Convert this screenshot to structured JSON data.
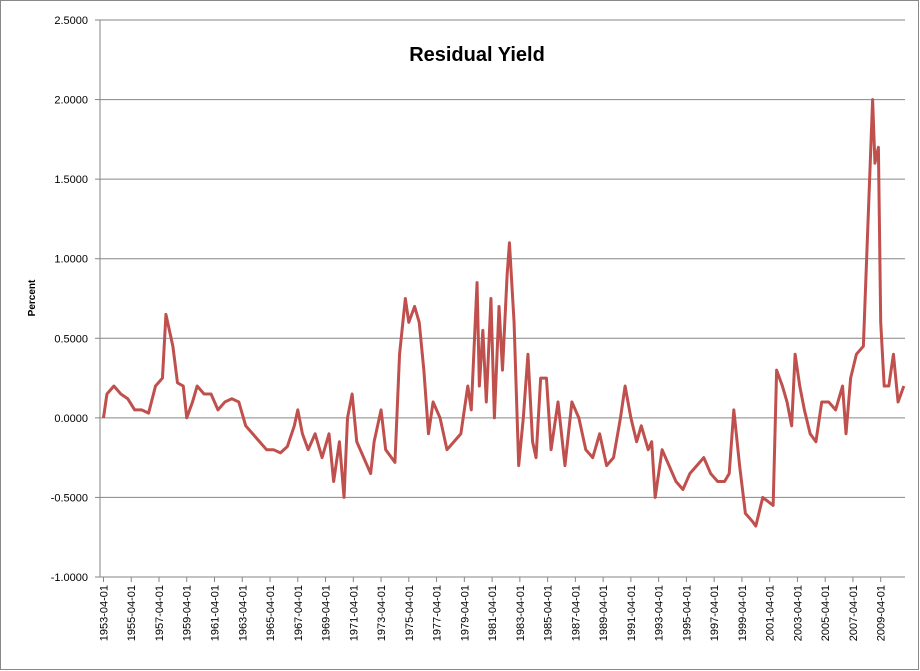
{
  "chart_data": {
    "type": "line",
    "title": "Residual Yield",
    "y_label": "Percent",
    "color": "#c0504d",
    "grid": true,
    "x": [
      "1953-04-01",
      "1953-07-01",
      "1954-01-01",
      "1954-07-01",
      "1955-01-01",
      "1955-07-01",
      "1956-01-01",
      "1956-07-01",
      "1957-01-01",
      "1957-07-01",
      "1957-10-01",
      "1958-04-01",
      "1958-08-01",
      "1959-01-01",
      "1959-04-01",
      "1959-09-01",
      "1960-01-01",
      "1960-07-01",
      "1961-01-01",
      "1961-07-01",
      "1962-01-01",
      "1962-07-01",
      "1963-01-01",
      "1963-07-01",
      "1964-01-01",
      "1964-07-01",
      "1965-01-01",
      "1965-07-01",
      "1966-01-01",
      "1966-07-01",
      "1967-01-01",
      "1967-04-01",
      "1967-08-01",
      "1968-01-01",
      "1968-07-01",
      "1969-01-01",
      "1969-07-01",
      "1969-11-01",
      "1970-04-01",
      "1970-08-01",
      "1970-11-01",
      "1971-03-01",
      "1971-07-01",
      "1972-01-01",
      "1972-07-01",
      "1972-10-01",
      "1973-04-01",
      "1973-08-01",
      "1974-01-01",
      "1974-04-01",
      "1974-08-01",
      "1975-01-01",
      "1975-04-01",
      "1975-09-01",
      "1976-01-01",
      "1976-05-01",
      "1976-09-01",
      "1977-01-01",
      "1977-07-01",
      "1978-01-01",
      "1978-07-01",
      "1979-01-01",
      "1979-07-01",
      "1979-10-01",
      "1980-03-01",
      "1980-05-01",
      "1980-08-01",
      "1980-11-01",
      "1981-03-01",
      "1981-06-01",
      "1981-10-01",
      "1982-01-01",
      "1982-05-01",
      "1982-07-01",
      "1982-11-01",
      "1983-03-01",
      "1983-07-01",
      "1983-11-01",
      "1984-03-01",
      "1984-06-01",
      "1984-10-01",
      "1985-03-01",
      "1985-07-01",
      "1986-01-01",
      "1986-07-01",
      "1987-01-01",
      "1987-07-01",
      "1988-01-01",
      "1988-07-01",
      "1989-01-01",
      "1989-07-01",
      "1990-01-01",
      "1990-07-01",
      "1990-11-01",
      "1991-04-01",
      "1991-09-01",
      "1992-01-01",
      "1992-07-01",
      "1992-10-01",
      "1993-01-01",
      "1993-07-01",
      "1994-01-01",
      "1994-07-01",
      "1995-01-01",
      "1995-07-01",
      "1996-01-01",
      "1996-07-01",
      "1997-01-01",
      "1997-07-01",
      "1998-01-01",
      "1998-05-01",
      "1998-09-01",
      "1999-02-01",
      "1999-07-01",
      "2000-01-01",
      "2000-04-01",
      "2000-10-01",
      "2001-07-01",
      "2001-10-01",
      "2002-03-01",
      "2002-07-01",
      "2002-11-01",
      "2003-02-01",
      "2003-06-01",
      "2003-10-01",
      "2004-03-01",
      "2004-08-01",
      "2005-01-01",
      "2005-07-01",
      "2006-01-01",
      "2006-07-01",
      "2006-10-01",
      "2007-02-01",
      "2007-07-01",
      "2008-01-01",
      "2008-09-01",
      "2008-11-01",
      "2009-02-01",
      "2009-04-01",
      "2009-07-01",
      "2009-11-01",
      "2010-03-01",
      "2010-07-01",
      "2010-12-01"
    ],
    "values": [
      0.0,
      0.15,
      0.2,
      0.15,
      0.12,
      0.05,
      0.05,
      0.03,
      0.2,
      0.25,
      0.65,
      0.45,
      0.22,
      0.2,
      0.0,
      0.1,
      0.2,
      0.15,
      0.15,
      0.05,
      0.1,
      0.12,
      0.1,
      -0.05,
      -0.1,
      -0.15,
      -0.2,
      -0.2,
      -0.22,
      -0.18,
      -0.05,
      0.05,
      -0.1,
      -0.2,
      -0.1,
      -0.25,
      -0.1,
      -0.4,
      -0.15,
      -0.5,
      0.0,
      0.15,
      -0.15,
      -0.25,
      -0.35,
      -0.15,
      0.05,
      -0.2,
      -0.25,
      -0.28,
      0.4,
      0.75,
      0.6,
      0.7,
      0.6,
      0.3,
      -0.1,
      0.1,
      0.0,
      -0.2,
      -0.15,
      -0.1,
      0.2,
      0.05,
      0.85,
      0.2,
      0.55,
      0.1,
      0.75,
      0.0,
      0.7,
      0.3,
      0.9,
      1.1,
      0.6,
      -0.3,
      0.0,
      0.4,
      -0.15,
      -0.25,
      0.25,
      0.25,
      -0.2,
      0.1,
      -0.3,
      0.1,
      0.0,
      -0.2,
      -0.25,
      -0.1,
      -0.3,
      -0.25,
      0.0,
      0.2,
      0.0,
      -0.15,
      -0.05,
      -0.2,
      -0.15,
      -0.5,
      -0.2,
      -0.3,
      -0.4,
      -0.45,
      -0.35,
      -0.3,
      -0.25,
      -0.35,
      -0.4,
      -0.4,
      -0.35,
      0.05,
      -0.3,
      -0.6,
      -0.65,
      -0.68,
      -0.5,
      -0.55,
      0.3,
      0.2,
      0.1,
      -0.05,
      0.4,
      0.2,
      0.05,
      -0.1,
      -0.15,
      0.1,
      0.1,
      0.05,
      0.2,
      -0.1,
      0.25,
      0.4,
      0.45,
      2.0,
      1.6,
      1.7,
      0.6,
      0.2,
      0.2,
      0.4,
      0.1,
      0.2
    ],
    "xlim": [
      "1953-01-01",
      "2011-01-01"
    ],
    "xticks": [
      "1953-04-01",
      "1955-04-01",
      "1957-04-01",
      "1959-04-01",
      "1961-04-01",
      "1963-04-01",
      "1965-04-01",
      "1967-04-01",
      "1969-04-01",
      "1971-04-01",
      "1973-04-01",
      "1975-04-01",
      "1977-04-01",
      "1979-04-01",
      "1981-04-01",
      "1983-04-01",
      "1985-04-01",
      "1987-04-01",
      "1989-04-01",
      "1991-04-01",
      "1993-04-01",
      "1995-04-01",
      "1997-04-01",
      "1999-04-01",
      "2001-04-01",
      "2003-04-01",
      "2005-04-01",
      "2007-04-01",
      "2009-04-01"
    ],
    "ylim": [
      -1,
      2.5
    ],
    "yticks": [
      {
        "value": -1,
        "label": "-1.0000"
      },
      {
        "value": -0.5,
        "label": "-0.5000"
      },
      {
        "value": 0,
        "label": "0.0000"
      },
      {
        "value": 0.5,
        "label": "0.5000"
      },
      {
        "value": 1,
        "label": "1.0000"
      },
      {
        "value": 1.5,
        "label": "1.5000"
      },
      {
        "value": 2,
        "label": "2.0000"
      },
      {
        "value": 2.5,
        "label": "2.5000"
      }
    ]
  }
}
